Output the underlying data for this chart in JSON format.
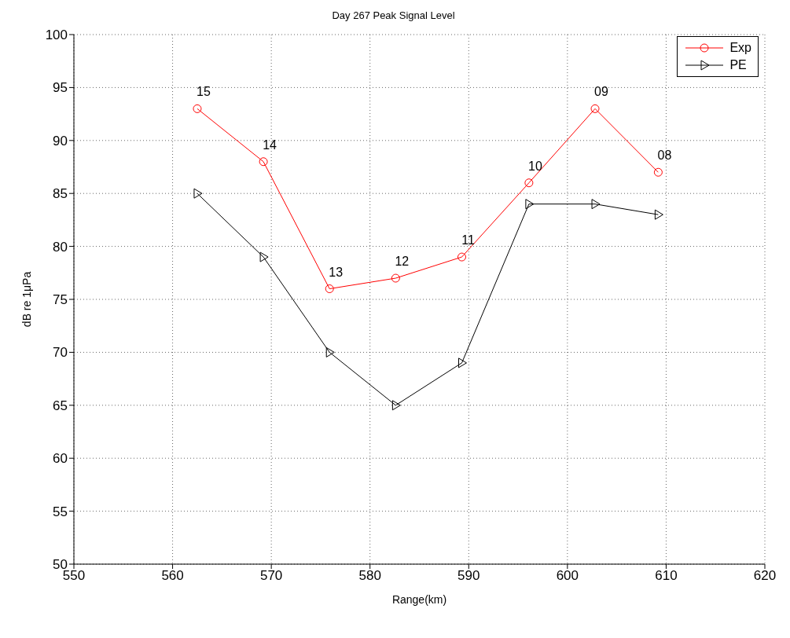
{
  "chart_data": {
    "type": "line",
    "title": "Day 267 Peak Signal Level",
    "xlabel": "Range(km)",
    "ylabel": "dB re 1μPa",
    "x": [
      562.5,
      569.2,
      575.9,
      582.6,
      589.3,
      596.1,
      602.8,
      609.2
    ],
    "series": [
      {
        "name": "Exp",
        "color": "#ff0000",
        "marker": "circle",
        "values": [
          93,
          88,
          76,
          77,
          79,
          86,
          93,
          87
        ]
      },
      {
        "name": "PE",
        "color": "#000000",
        "marker": "triangle",
        "values": [
          85,
          79,
          70,
          65,
          69,
          84,
          84,
          83
        ]
      }
    ],
    "annotations": [
      {
        "text": "15",
        "x": 562.5,
        "y": 93
      },
      {
        "text": "14",
        "x": 569.2,
        "y": 88
      },
      {
        "text": "13",
        "x": 575.9,
        "y": 76
      },
      {
        "text": "12",
        "x": 582.6,
        "y": 77
      },
      {
        "text": "11",
        "x": 589.3,
        "y": 79
      },
      {
        "text": "10",
        "x": 596.1,
        "y": 86
      },
      {
        "text": "09",
        "x": 602.8,
        "y": 93
      },
      {
        "text": "08",
        "x": 609.2,
        "y": 87
      }
    ],
    "xlim": [
      550,
      620
    ],
    "xticks": [
      550,
      560,
      570,
      580,
      590,
      600,
      610,
      620
    ],
    "ylim": [
      50,
      100
    ],
    "yticks": [
      50,
      55,
      60,
      65,
      70,
      75,
      80,
      85,
      90,
      95,
      100
    ],
    "grid": true,
    "legend": "top right",
    "line_style": "solid"
  }
}
